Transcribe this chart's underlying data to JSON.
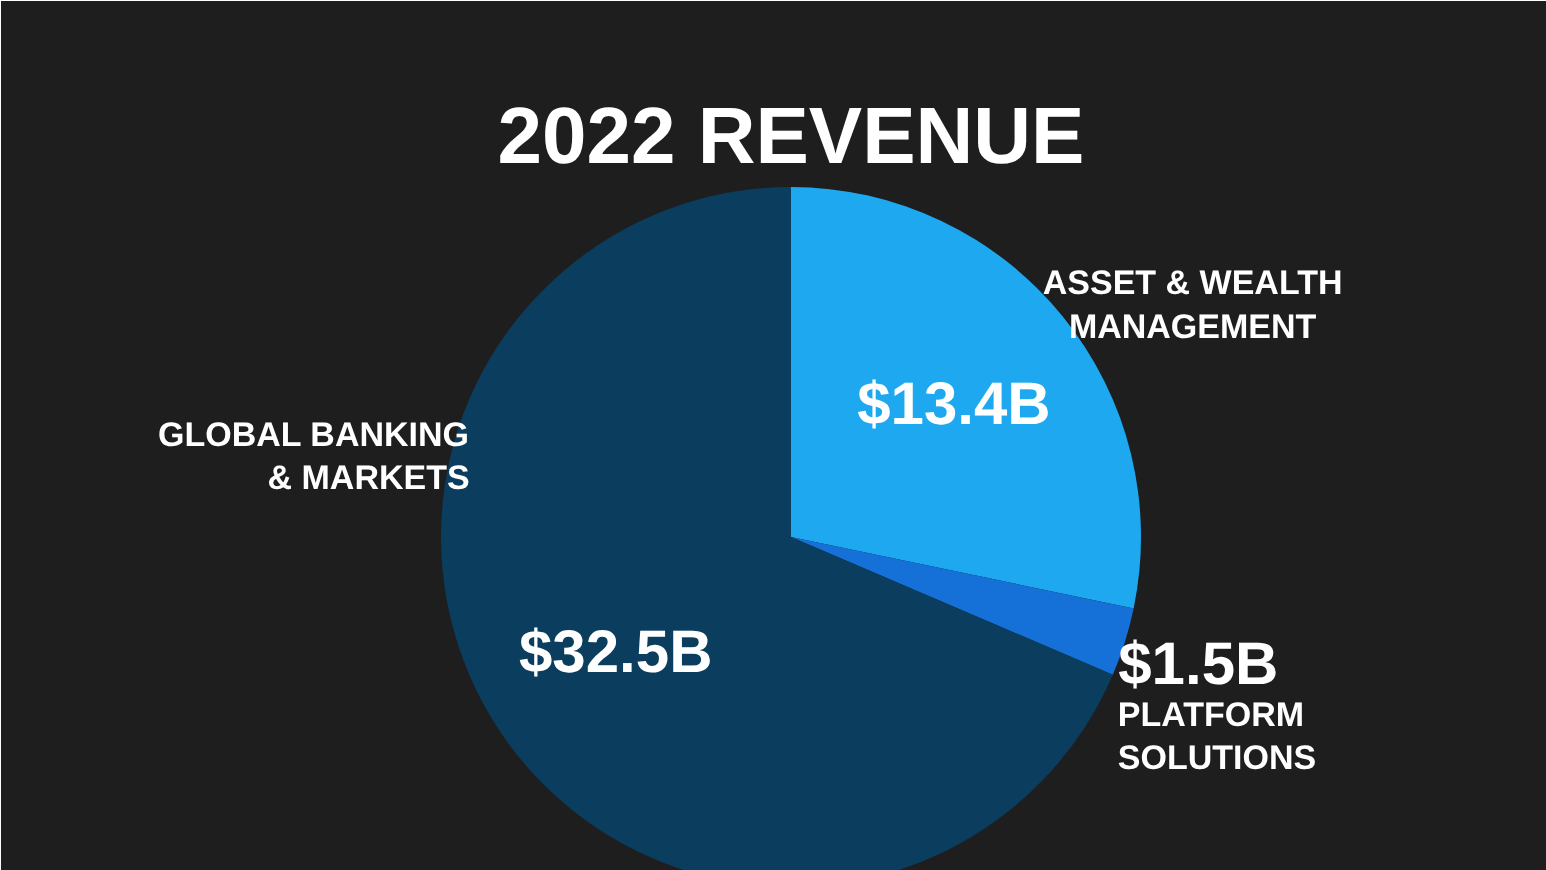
{
  "chart_data": {
    "type": "pie",
    "title": "2022 REVENUE",
    "categories": [
      "ASSET & WEALTH\nMANAGEMENT",
      "PLATFORM\nSOLUTIONS",
      "GLOBAL BANKING\n& MARKETS"
    ],
    "values": [
      13.4,
      1.5,
      32.5
    ],
    "value_labels": [
      "$13.4B",
      "$1.5B",
      "$32.5B"
    ],
    "colors": [
      "#1ea8f0",
      "#1570d8",
      "#0a3d5e"
    ]
  }
}
